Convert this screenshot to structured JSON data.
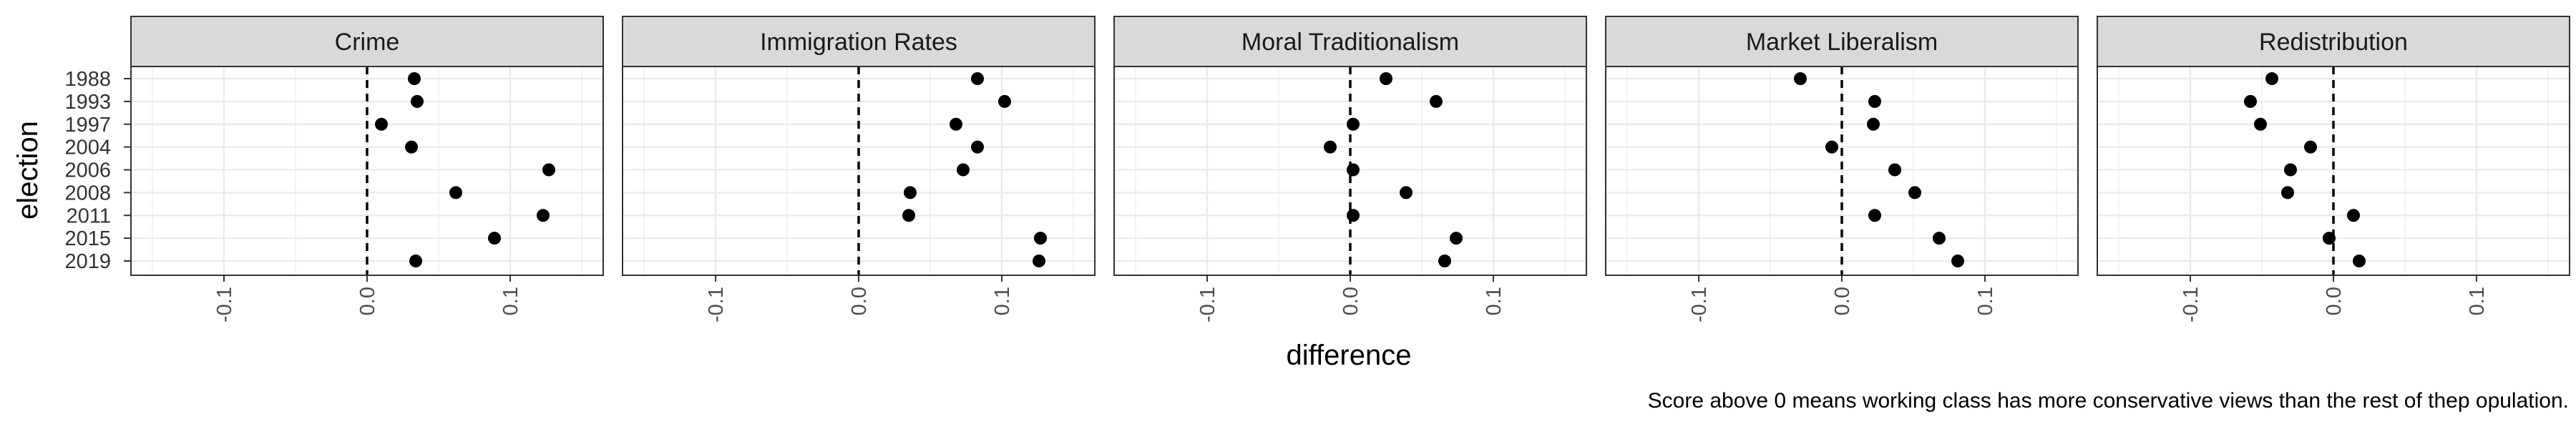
{
  "chart_data": {
    "type": "scatter",
    "facet_by": "policy area",
    "panels": [
      {
        "name": "Crime",
        "values": [
          0.033,
          0.035,
          0.01,
          0.031,
          0.127,
          0.062,
          0.123,
          0.089,
          0.034
        ]
      },
      {
        "name": "Immigration Rates",
        "values": [
          0.083,
          0.102,
          0.068,
          0.083,
          0.073,
          0.036,
          0.035,
          0.127,
          0.126
        ]
      },
      {
        "name": "Moral Traditionalism",
        "values": [
          0.025,
          0.06,
          0.002,
          -0.014,
          0.002,
          0.039,
          0.002,
          0.074,
          0.066
        ]
      },
      {
        "name": "Market Liberalism",
        "values": [
          -0.029,
          0.023,
          0.022,
          -0.007,
          0.037,
          0.051,
          0.023,
          0.068,
          0.081
        ]
      },
      {
        "name": "Redistribution",
        "values": [
          -0.043,
          -0.058,
          -0.051,
          -0.016,
          -0.03,
          -0.032,
          0.014,
          -0.003,
          0.018
        ]
      }
    ],
    "categories": [
      "1988",
      "1993",
      "1997",
      "2004",
      "2006",
      "2008",
      "2011",
      "2015",
      "2019"
    ],
    "xlabel": "difference",
    "ylabel": "election",
    "xlim": [
      -0.165,
      0.165
    ],
    "xticks": [
      -0.1,
      0.0,
      0.1
    ],
    "xtick_labels": [
      "-0.1",
      "0.0",
      "0.1"
    ],
    "reference_line": {
      "x": 0,
      "style": "dashed"
    },
    "grid": true,
    "legend": "none",
    "caption": "Score above 0 means working class has more conservative views than the rest of thep opulation."
  },
  "colors": {
    "point": "#000000",
    "strip_fill": "#d9d9d9",
    "grid": "#ebebeb",
    "panel_border": "#333333"
  }
}
